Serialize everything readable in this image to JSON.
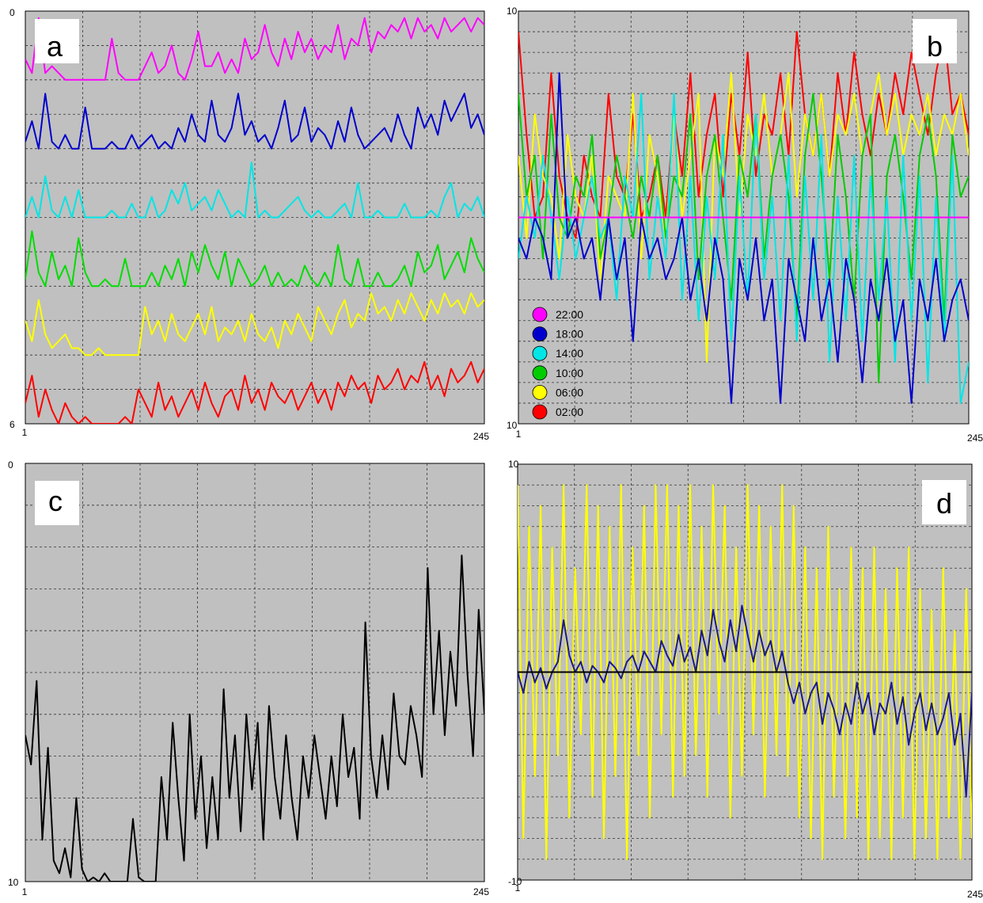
{
  "chart_data": [
    {
      "type": "line",
      "panel_label": "a",
      "xlim": [
        1,
        245
      ],
      "ylim": [
        0,
        6
      ],
      "x_tick_labels": [
        "1",
        "245"
      ],
      "y_tick_labels": [
        "0",
        "6"
      ],
      "grid": true,
      "series": [
        {
          "color": "#ff00ff",
          "base": 5,
          "amplitude": 1.0,
          "values": [
            0.3,
            0.1,
            0.9,
            0.1,
            0.2,
            0.1,
            0.0,
            0.0,
            0.0,
            0.0,
            0.0,
            0.0,
            0.0,
            0.6,
            0.1,
            0.0,
            0.0,
            0.0,
            0.2,
            0.4,
            0.1,
            0.2,
            0.5,
            0.1,
            0.0,
            0.3,
            0.7,
            0.2,
            0.2,
            0.4,
            0.1,
            0.3,
            0.1,
            0.6,
            0.3,
            0.4,
            0.8,
            0.4,
            0.2,
            0.6,
            0.3,
            0.7,
            0.4,
            0.6,
            0.3,
            0.5,
            0.4,
            0.8,
            0.3,
            0.6,
            0.5,
            0.9,
            0.4,
            0.7,
            0.6,
            0.8,
            0.7,
            0.9,
            0.6,
            0.9,
            0.7,
            0.8,
            0.6,
            0.9,
            0.7,
            0.8,
            0.9,
            0.7,
            0.9,
            0.8
          ]
        },
        {
          "color": "#0000cc",
          "base": 4,
          "amplitude": 1.0,
          "values": [
            0.1,
            0.4,
            0.0,
            0.8,
            0.1,
            0.0,
            0.2,
            0.0,
            0.0,
            0.6,
            0.0,
            0.0,
            0.0,
            0.1,
            0.0,
            0.0,
            0.2,
            0.0,
            0.1,
            0.2,
            0.0,
            0.1,
            0.0,
            0.3,
            0.1,
            0.5,
            0.2,
            0.1,
            0.7,
            0.2,
            0.1,
            0.3,
            0.8,
            0.2,
            0.4,
            0.1,
            0.2,
            0.0,
            0.3,
            0.7,
            0.1,
            0.2,
            0.6,
            0.1,
            0.3,
            0.2,
            0.0,
            0.4,
            0.1,
            0.6,
            0.2,
            0.0,
            0.1,
            0.2,
            0.3,
            0.1,
            0.5,
            0.2,
            0.0,
            0.6,
            0.3,
            0.5,
            0.2,
            0.7,
            0.4,
            0.6,
            0.8,
            0.3,
            0.5,
            0.2
          ]
        },
        {
          "color": "#00e5e5",
          "base": 3,
          "amplitude": 1.0,
          "values": [
            0.0,
            0.3,
            0.0,
            0.6,
            0.1,
            0.0,
            0.3,
            0.0,
            0.4,
            0.0,
            0.0,
            0.0,
            0.0,
            0.1,
            0.0,
            0.0,
            0.2,
            0.0,
            0.0,
            0.3,
            0.0,
            0.1,
            0.4,
            0.2,
            0.5,
            0.1,
            0.2,
            0.3,
            0.1,
            0.4,
            0.2,
            0.0,
            0.1,
            0.0,
            0.8,
            0.0,
            0.1,
            0.0,
            0.0,
            0.1,
            0.2,
            0.3,
            0.1,
            0.0,
            0.1,
            0.0,
            0.0,
            0.1,
            0.2,
            0.0,
            0.5,
            0.0,
            0.0,
            0.1,
            0.0,
            0.0,
            0.0,
            0.2,
            0.0,
            0.0,
            0.0,
            0.1,
            0.0,
            0.3,
            0.5,
            0.0,
            0.2,
            0.1,
            0.3,
            0.0
          ]
        },
        {
          "color": "#00dd00",
          "base": 2,
          "amplitude": 1.0,
          "values": [
            0.1,
            0.8,
            0.2,
            0.0,
            0.5,
            0.1,
            0.3,
            0.0,
            0.7,
            0.2,
            0.0,
            0.0,
            0.1,
            0.0,
            0.0,
            0.4,
            0.0,
            0.0,
            0.0,
            0.2,
            0.0,
            0.3,
            0.1,
            0.4,
            0.0,
            0.5,
            0.2,
            0.6,
            0.3,
            0.1,
            0.5,
            0.0,
            0.4,
            0.2,
            0.0,
            0.1,
            0.3,
            0.0,
            0.2,
            0.0,
            0.1,
            0.0,
            0.3,
            0.1,
            0.0,
            0.2,
            0.0,
            0.6,
            0.1,
            0.0,
            0.4,
            0.0,
            0.0,
            0.2,
            0.0,
            0.0,
            0.1,
            0.3,
            0.0,
            0.5,
            0.2,
            0.3,
            0.6,
            0.1,
            0.3,
            0.5,
            0.2,
            0.7,
            0.4,
            0.2
          ]
        },
        {
          "color": "#ffff00",
          "base": 1,
          "amplitude": 1.0,
          "values": [
            0.5,
            0.2,
            0.8,
            0.3,
            0.1,
            0.2,
            0.3,
            0.1,
            0.1,
            0.0,
            0.0,
            0.1,
            0.0,
            0.0,
            0.0,
            0.0,
            0.0,
            0.0,
            0.7,
            0.3,
            0.5,
            0.2,
            0.6,
            0.3,
            0.2,
            0.4,
            0.6,
            0.3,
            0.7,
            0.2,
            0.4,
            0.3,
            0.5,
            0.2,
            0.6,
            0.3,
            0.2,
            0.4,
            0.1,
            0.5,
            0.3,
            0.6,
            0.4,
            0.2,
            0.7,
            0.5,
            0.3,
            0.6,
            0.8,
            0.4,
            0.6,
            0.5,
            0.9,
            0.6,
            0.7,
            0.5,
            0.8,
            0.6,
            0.9,
            0.7,
            0.5,
            0.8,
            0.6,
            0.9,
            0.7,
            0.8,
            0.6,
            0.9,
            0.7,
            0.8
          ]
        },
        {
          "color": "#ff0000",
          "base": 0,
          "amplitude": 1.0,
          "values": [
            0.3,
            0.7,
            0.1,
            0.5,
            0.2,
            0.0,
            0.3,
            0.1,
            0.0,
            0.1,
            0.0,
            0.0,
            0.0,
            0.0,
            0.0,
            0.1,
            0.0,
            0.5,
            0.3,
            0.1,
            0.6,
            0.2,
            0.4,
            0.1,
            0.3,
            0.5,
            0.2,
            0.6,
            0.3,
            0.1,
            0.4,
            0.5,
            0.2,
            0.7,
            0.3,
            0.5,
            0.2,
            0.6,
            0.4,
            0.3,
            0.5,
            0.2,
            0.4,
            0.6,
            0.3,
            0.5,
            0.2,
            0.6,
            0.4,
            0.7,
            0.5,
            0.6,
            0.3,
            0.7,
            0.5,
            0.6,
            0.8,
            0.5,
            0.7,
            0.6,
            0.9,
            0.5,
            0.7,
            0.4,
            0.8,
            0.6,
            0.7,
            0.9,
            0.6,
            0.8
          ]
        }
      ]
    },
    {
      "type": "line",
      "panel_label": "b",
      "xlim": [
        1,
        245
      ],
      "ylim": [
        -10,
        10
      ],
      "x_tick_labels": [
        "1",
        "245"
      ],
      "y_tick_labels": [
        "10",
        "10"
      ],
      "grid": true,
      "legend": {
        "placement": "bottom-left",
        "entries": [
          {
            "label": "22:00",
            "color": "#ff00ff"
          },
          {
            "label": "18:00",
            "color": "#0000cc"
          },
          {
            "label": "14:00",
            "color": "#00e5e5"
          },
          {
            "label": "10:00",
            "color": "#00cc00"
          },
          {
            "label": "06:00",
            "color": "#ffff00"
          },
          {
            "label": "02:00",
            "color": "#ff0000"
          }
        ]
      },
      "series": [
        {
          "color": "#ff0000",
          "values": [
            9.0,
            4.0,
            0.0,
            1.0,
            7.0,
            2.0,
            0.0,
            -1.0,
            3.0,
            1.0,
            0.0,
            6.0,
            2.0,
            1.0,
            5.0,
            0.0,
            1.0,
            3.0,
            0.0,
            5.0,
            2.0,
            7.0,
            1.0,
            4.0,
            6.0,
            1.0,
            6.0,
            3.0,
            8.0,
            2.0,
            5.0,
            4.0,
            7.0,
            3.0,
            9.0,
            5.0,
            3.0,
            6.0,
            2.0,
            7.0,
            4.0,
            8.0,
            5.0,
            3.0,
            6.0,
            4.0,
            7.0,
            5.0,
            8.0,
            6.0,
            4.0,
            7.0,
            9.0,
            5.0,
            6.0,
            4.0
          ]
        },
        {
          "color": "#ffff00",
          "values": [
            3.0,
            -1.0,
            5.0,
            2.0,
            1.0,
            -2.0,
            4.0,
            1.0,
            0.0,
            3.0,
            -3.0,
            2.0,
            1.0,
            0.0,
            6.0,
            -2.0,
            4.0,
            2.0,
            -1.0,
            5.0,
            0.0,
            3.0,
            6.0,
            -7.0,
            4.0,
            2.0,
            7.0,
            0.0,
            5.0,
            3.0,
            6.0,
            2.0,
            4.0,
            7.0,
            1.0,
            5.0,
            3.0,
            6.0,
            2.0,
            5.0,
            4.0,
            6.0,
            3.0,
            5.0,
            7.0,
            4.0,
            6.0,
            3.0,
            5.0,
            4.0,
            6.0,
            3.0,
            5.0,
            4.0,
            6.0,
            3.0
          ]
        },
        {
          "color": "#00cc00",
          "values": [
            6.0,
            1.0,
            3.0,
            -2.0,
            5.0,
            0.0,
            -1.0,
            2.0,
            1.0,
            4.0,
            -2.0,
            0.0,
            3.0,
            1.0,
            -1.0,
            2.0,
            0.0,
            3.0,
            -1.0,
            2.0,
            1.0,
            5.0,
            -3.0,
            2.0,
            4.0,
            0.0,
            -4.0,
            3.0,
            1.0,
            5.0,
            -2.0,
            2.0,
            4.0,
            1.0,
            -5.0,
            3.0,
            6.0,
            2.0,
            -3.0,
            4.0,
            1.0,
            -4.0,
            3.0,
            5.0,
            -8.0,
            2.0,
            4.0,
            1.0,
            -3.0,
            3.0,
            5.0,
            2.0,
            -5.0,
            4.0,
            1.0,
            2.0
          ]
        },
        {
          "color": "#00e5e5",
          "values": [
            -2.0,
            1.0,
            -1.0,
            3.0,
            0.0,
            -3.0,
            1.0,
            -2.0,
            0.0,
            2.0,
            -1.0,
            0.0,
            -4.0,
            2.0,
            0.0,
            6.0,
            -3.0,
            1.0,
            -2.0,
            6.0,
            -4.0,
            2.0,
            -5.0,
            1.0,
            -3.0,
            4.0,
            -6.0,
            2.0,
            -4.0,
            5.0,
            -3.0,
            1.0,
            -5.0,
            3.0,
            -6.0,
            2.0,
            -4.0,
            4.0,
            -7.0,
            1.0,
            -5.0,
            3.0,
            -6.0,
            2.0,
            -4.0,
            1.0,
            -7.0,
            3.0,
            -5.0,
            2.0,
            -8.0,
            1.0,
            -6.0,
            3.0,
            -9.0,
            -7.0
          ]
        },
        {
          "color": "#0000cc",
          "values": [
            -1.0,
            -2.0,
            0.0,
            -1.0,
            -3.0,
            7.0,
            -1.0,
            0.0,
            -2.0,
            -1.0,
            -4.0,
            0.0,
            -3.0,
            -1.0,
            -6.0,
            0.0,
            -2.0,
            -1.0,
            -3.0,
            -2.0,
            0.0,
            -4.0,
            -2.0,
            -5.0,
            -1.0,
            -3.0,
            -9.0,
            -2.0,
            -4.0,
            -1.0,
            -5.0,
            -3.0,
            -9.0,
            -2.0,
            -4.0,
            -6.0,
            -1.0,
            -5.0,
            -3.0,
            -7.0,
            -2.0,
            -4.0,
            -8.0,
            -3.0,
            -5.0,
            -2.0,
            -6.0,
            -4.0,
            -9.0,
            -3.0,
            -5.0,
            -2.0,
            -6.0,
            -4.0,
            -3.0,
            -5.0
          ]
        },
        {
          "color": "#ff00ff",
          "values": [
            0.0,
            0.0
          ]
        }
      ]
    },
    {
      "type": "line",
      "panel_label": "c",
      "xlim": [
        1,
        245
      ],
      "ylim": [
        0,
        10
      ],
      "x_tick_labels": [
        "1",
        "245"
      ],
      "y_tick_labels": [
        "0",
        "10"
      ],
      "grid": true,
      "series": [
        {
          "color": "#000000",
          "values": [
            3.5,
            2.8,
            4.8,
            1.0,
            3.2,
            0.5,
            0.2,
            0.8,
            0.1,
            2.0,
            0.3,
            0.0,
            0.1,
            0.0,
            0.2,
            0.0,
            0.0,
            0.0,
            0.0,
            1.5,
            0.1,
            0.0,
            0.0,
            0.0,
            2.5,
            1.0,
            3.8,
            2.0,
            0.5,
            4.0,
            1.5,
            3.0,
            0.8,
            2.5,
            1.0,
            4.6,
            2.0,
            3.5,
            1.2,
            4.0,
            2.2,
            3.8,
            1.0,
            4.2,
            2.5,
            1.5,
            3.5,
            2.0,
            1.0,
            3.0,
            2.0,
            3.5,
            2.5,
            1.5,
            3.0,
            1.8,
            4.0,
            2.5,
            3.2,
            1.5,
            6.2,
            3.0,
            2.0,
            3.5,
            2.2,
            4.5,
            3.0,
            2.8,
            4.2,
            3.5,
            2.5,
            7.5,
            4.0,
            6.0,
            3.5,
            5.5,
            4.2,
            7.8,
            5.0,
            3.0,
            6.5,
            4.0
          ]
        }
      ]
    },
    {
      "type": "line",
      "panel_label": "d",
      "xlim": [
        1,
        245
      ],
      "ylim": [
        -10,
        10
      ],
      "x_tick_labels": [
        "1",
        "245"
      ],
      "y_tick_labels": [
        "10",
        "-10"
      ],
      "grid": true,
      "series": [
        {
          "color": "#ffff00",
          "values": [
            9.0,
            -8.0,
            7.0,
            -5.0,
            8.0,
            -9.0,
            6.0,
            -4.0,
            9.0,
            -7.0,
            5.0,
            -3.0,
            9.0,
            -6.0,
            8.0,
            -8.0,
            7.0,
            -5.0,
            9.0,
            -9.0,
            6.0,
            -4.0,
            8.0,
            -7.0,
            9.0,
            -3.0,
            9.0,
            -6.0,
            8.0,
            -5.0,
            9.0,
            -4.0,
            7.0,
            -6.0,
            9.0,
            -2.0,
            8.0,
            -7.0,
            6.0,
            -5.0,
            9.0,
            -3.0,
            8.0,
            -6.0,
            7.0,
            -4.0,
            9.0,
            -5.0,
            8.0,
            -7.0,
            6.0,
            -8.0,
            5.0,
            -9.0,
            7.0,
            -6.0,
            4.0,
            -8.0,
            6.0,
            -7.0,
            5.0,
            -9.0,
            6.0,
            -8.0,
            4.0,
            -9.0,
            5.0,
            -7.0,
            6.0,
            -9.0,
            4.0,
            -8.0,
            3.0,
            -9.0,
            5.0,
            -7.0,
            2.0,
            -9.0,
            4.0,
            -8.0
          ]
        },
        {
          "color": "#1a1a8c",
          "values": [
            0.0,
            -1.0,
            0.5,
            -0.5,
            0.2,
            -0.8,
            0.0,
            0.5,
            2.5,
            0.8,
            0.0,
            0.5,
            -0.5,
            0.3,
            0.0,
            -0.5,
            0.5,
            0.2,
            -0.3,
            0.5,
            0.8,
            0.0,
            1.0,
            0.5,
            0.0,
            1.5,
            0.8,
            0.3,
            1.8,
            0.5,
            1.2,
            0.0,
            2.0,
            0.8,
            3.0,
            1.5,
            0.5,
            2.5,
            1.0,
            3.2,
            1.8,
            0.5,
            2.0,
            0.8,
            1.5,
            0.0,
            1.0,
            -0.5,
            -1.5,
            -0.5,
            -2.0,
            -1.0,
            -0.5,
            -2.5,
            -1.0,
            -1.8,
            -3.0,
            -1.5,
            -2.5,
            -0.5,
            -2.0,
            -1.0,
            -3.0,
            -1.5,
            -2.0,
            -0.5,
            -2.5,
            -1.2,
            -3.5,
            -2.0,
            -1.0,
            -2.8,
            -1.5,
            -3.0,
            -2.2,
            -1.0,
            -3.5,
            -2.0,
            -6.0,
            -1.0
          ]
        },
        {
          "color": "#000000",
          "values": [
            0.0,
            0.0
          ]
        }
      ]
    }
  ]
}
